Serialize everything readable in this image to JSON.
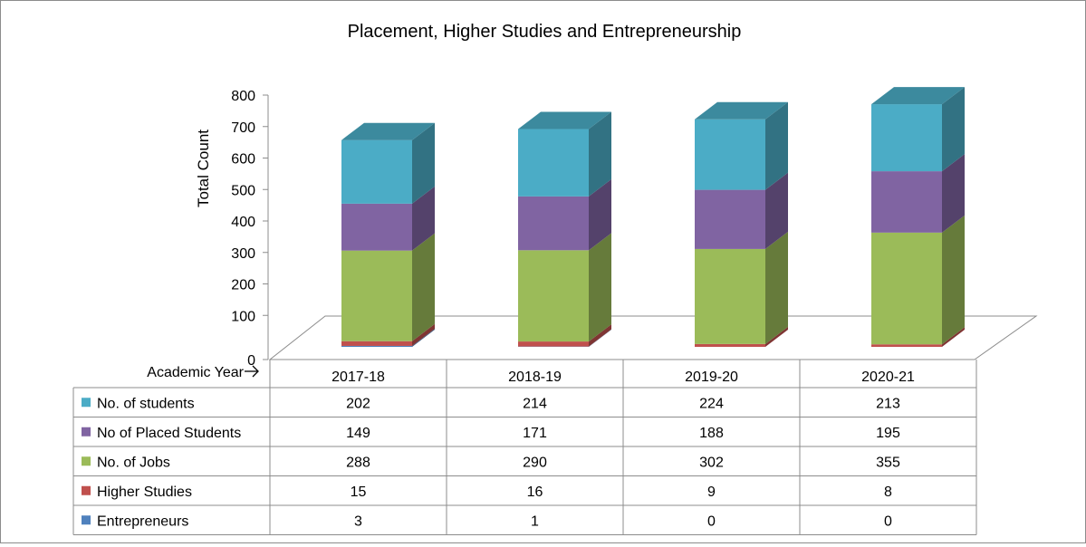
{
  "chart_data": {
    "type": "bar",
    "stacked": true,
    "three_d": true,
    "title": "Placement, Higher Studies and Entrepreneurship",
    "ylabel": "Total Count",
    "xlabel": "Academic Year",
    "ylim": [
      0,
      800
    ],
    "yticks": [
      0,
      100,
      200,
      300,
      400,
      500,
      600,
      700,
      800
    ],
    "categories": [
      "2017-18",
      "2018-19",
      "2019-20",
      "2020-21"
    ],
    "data_table": true,
    "series": [
      {
        "name": "No. of students",
        "color": "#4bacc6",
        "values": [
          202,
          214,
          224,
          213
        ]
      },
      {
        "name": "No of Placed Students",
        "color": "#8064a2",
        "values": [
          149,
          171,
          188,
          195
        ]
      },
      {
        "name": "No. of Jobs",
        "color": "#9bbb59",
        "values": [
          288,
          290,
          302,
          355
        ]
      },
      {
        "name": "Higher Studies",
        "color": "#c0504d",
        "values": [
          15,
          16,
          9,
          8
        ]
      },
      {
        "name": "Entrepreneurs",
        "color": "#4f81bd",
        "values": [
          3,
          1,
          0,
          0
        ]
      }
    ]
  }
}
